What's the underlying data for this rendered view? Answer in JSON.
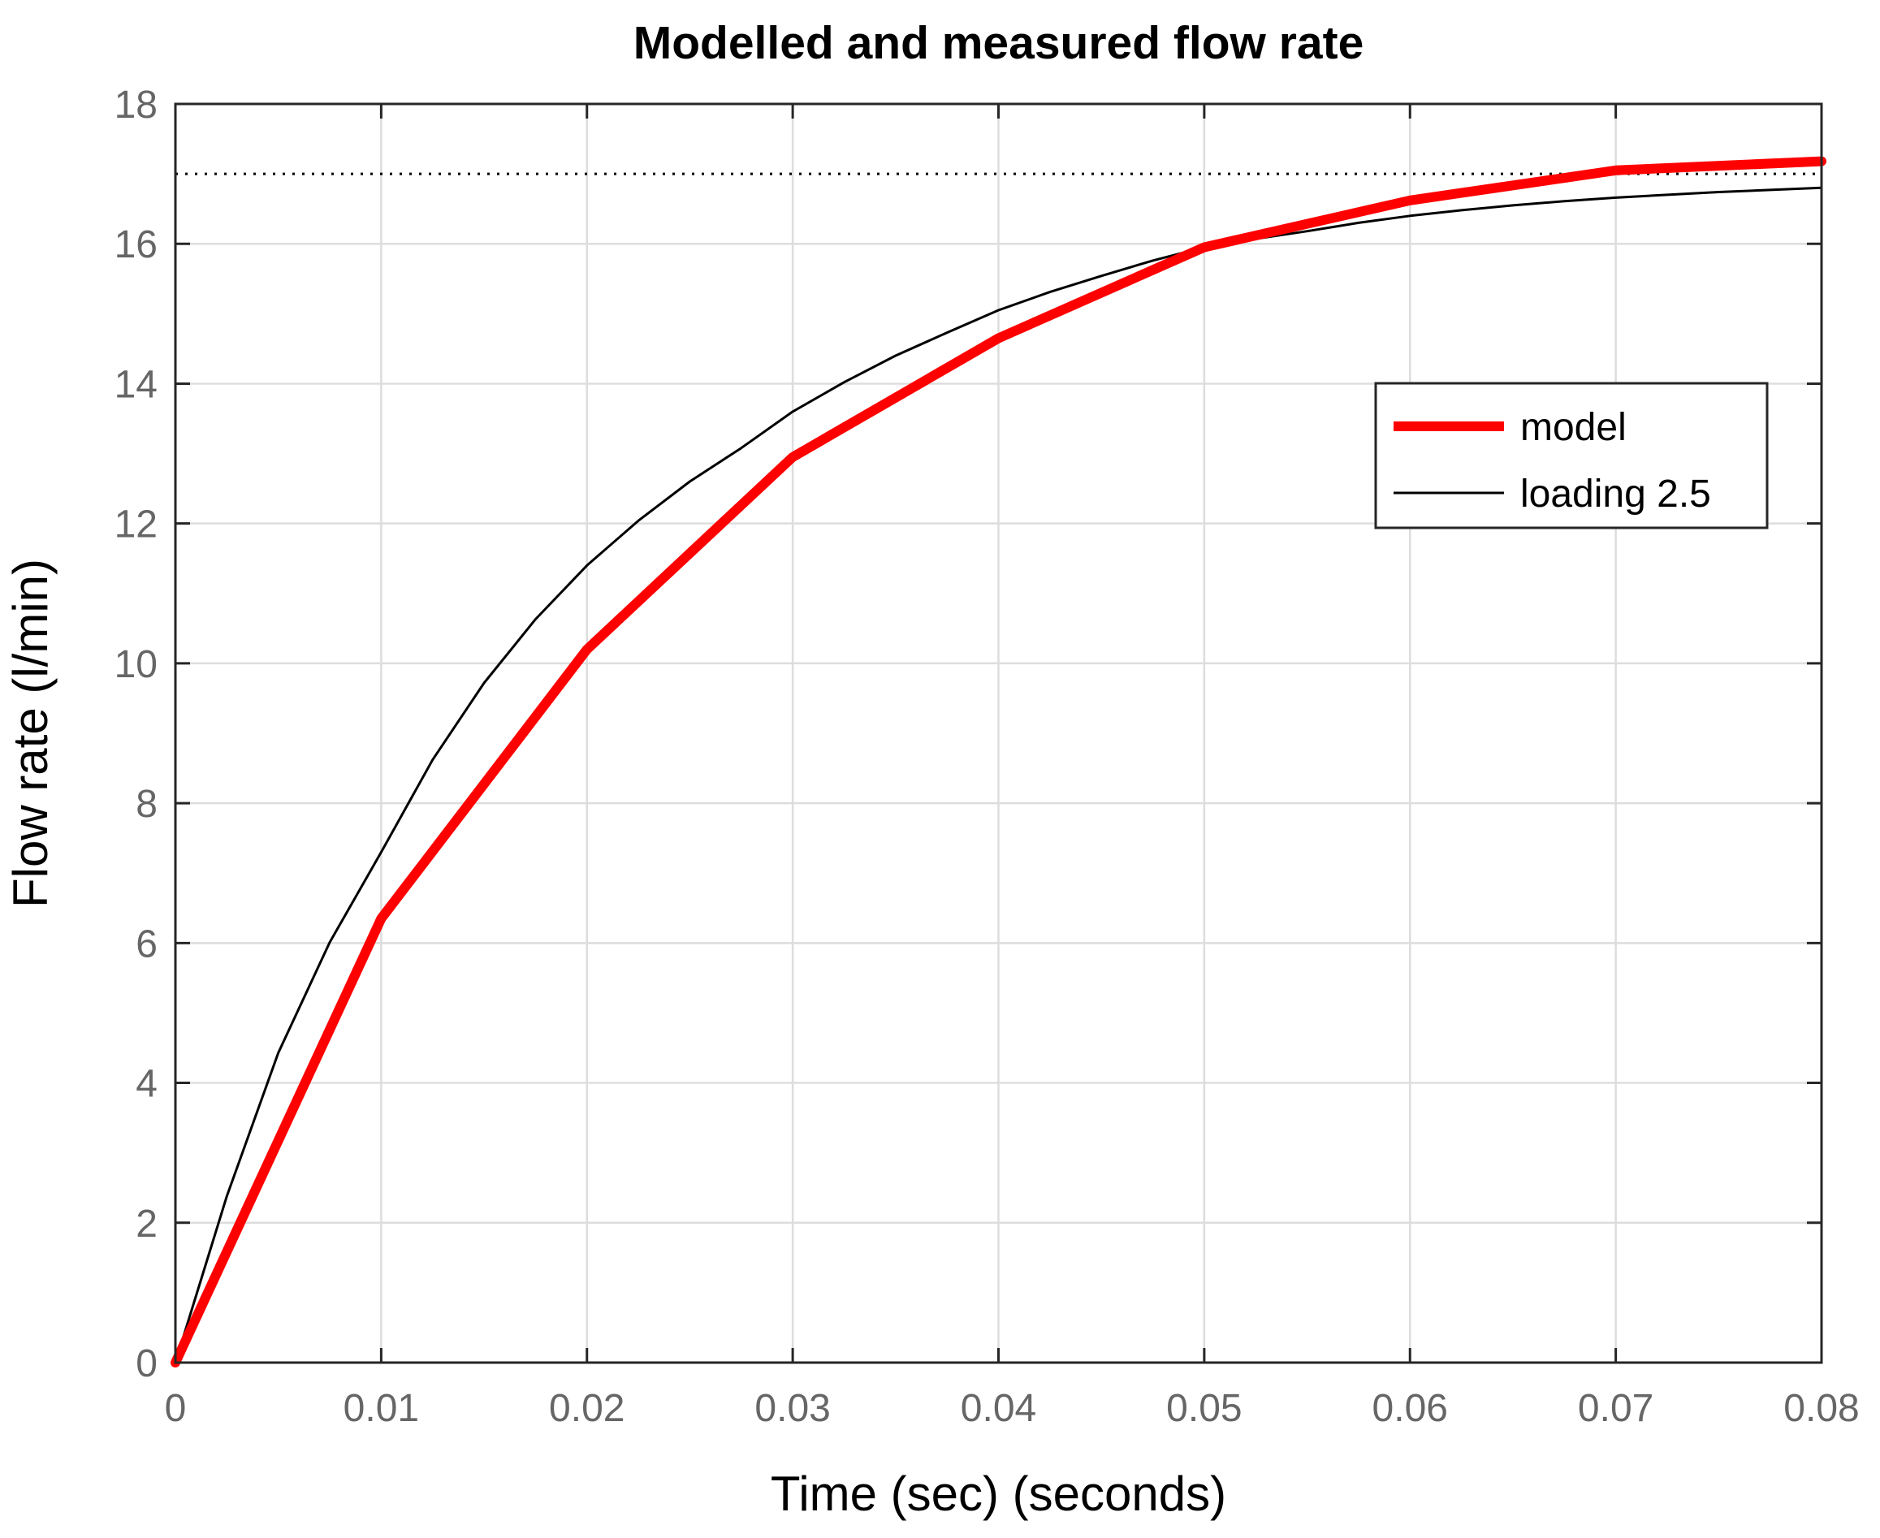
{
  "chart_data": {
    "type": "line",
    "title": "Modelled and measured flow rate",
    "xlabel": "Time (sec) (seconds)",
    "ylabel": "Flow rate (l/min)",
    "xlim": [
      0,
      0.08
    ],
    "ylim": [
      0,
      18
    ],
    "xticks": [
      0,
      0.01,
      0.02,
      0.03,
      0.04,
      0.05,
      0.06,
      0.07,
      0.08
    ],
    "xtick_labels": [
      "0",
      "0.01",
      "0.02",
      "0.03",
      "0.04",
      "0.05",
      "0.06",
      "0.07",
      "0.08"
    ],
    "yticks": [
      0,
      2,
      4,
      6,
      8,
      10,
      12,
      14,
      16,
      18
    ],
    "ytick_labels": [
      "0",
      "2",
      "4",
      "6",
      "8",
      "10",
      "12",
      "14",
      "16",
      "18"
    ],
    "grid": true,
    "legend_position": "upper-right",
    "reference_line": {
      "y": 17,
      "style": "dotted",
      "color": "#000000"
    },
    "series": [
      {
        "name": "model",
        "color": "#ff0000",
        "style": "thick",
        "x": [
          0,
          0.01,
          0.02,
          0.03,
          0.04,
          0.05,
          0.06,
          0.07,
          0.08
        ],
        "y": [
          0,
          6.35,
          10.2,
          12.95,
          14.65,
          15.95,
          16.62,
          17.05,
          17.18
        ]
      },
      {
        "name": "loading 2.5",
        "color": "#000000",
        "style": "thin",
        "x": [
          0,
          0.0025,
          0.005,
          0.0075,
          0.01,
          0.0125,
          0.015,
          0.0175,
          0.02,
          0.0225,
          0.025,
          0.0275,
          0.03,
          0.0325,
          0.035,
          0.0375,
          0.04,
          0.0425,
          0.045,
          0.0475,
          0.05,
          0.0525,
          0.055,
          0.0575,
          0.06,
          0.0625,
          0.065,
          0.0675,
          0.07,
          0.0725,
          0.075,
          0.0775,
          0.08
        ],
        "y": [
          0,
          2.38,
          4.43,
          6.01,
          7.3,
          8.62,
          9.72,
          10.63,
          11.4,
          12.04,
          12.6,
          13.08,
          13.6,
          14.02,
          14.4,
          14.73,
          15.05,
          15.31,
          15.54,
          15.76,
          15.95,
          16.07,
          16.18,
          16.3,
          16.4,
          16.48,
          16.55,
          16.61,
          16.66,
          16.7,
          16.74,
          16.77,
          16.8
        ]
      }
    ]
  }
}
